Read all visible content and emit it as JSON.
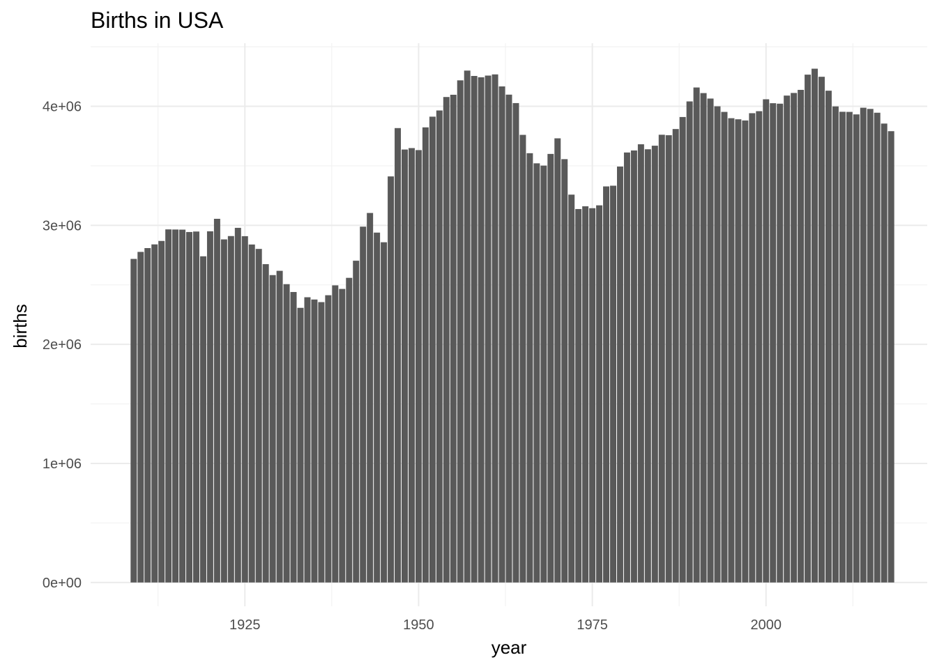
{
  "chart_data": {
    "type": "bar",
    "title": "Births in USA",
    "xlabel": "year",
    "ylabel": "births",
    "xlim": [
      1902.8,
      2023.2
    ],
    "ylim": [
      -200000,
      4530000
    ],
    "x_ticks": [
      1925,
      1950,
      1975,
      2000
    ],
    "x_tick_labels": [
      "1925",
      "1950",
      "1975",
      "2000"
    ],
    "y_ticks": [
      0,
      1000000,
      2000000,
      3000000,
      4000000
    ],
    "y_tick_labels": [
      "0e+00",
      "1e+06",
      "2e+06",
      "3e+06",
      "4e+06"
    ],
    "grid": true,
    "bar_color": "#595959",
    "x": [
      1909,
      1910,
      1911,
      1912,
      1913,
      1914,
      1915,
      1916,
      1917,
      1918,
      1919,
      1920,
      1921,
      1922,
      1923,
      1924,
      1925,
      1926,
      1927,
      1928,
      1929,
      1930,
      1931,
      1932,
      1933,
      1934,
      1935,
      1936,
      1937,
      1938,
      1939,
      1940,
      1941,
      1942,
      1943,
      1944,
      1945,
      1946,
      1947,
      1948,
      1949,
      1950,
      1951,
      1952,
      1953,
      1954,
      1955,
      1956,
      1957,
      1958,
      1959,
      1960,
      1961,
      1962,
      1963,
      1964,
      1965,
      1966,
      1967,
      1968,
      1969,
      1970,
      1971,
      1972,
      1973,
      1974,
      1975,
      1976,
      1977,
      1978,
      1979,
      1980,
      1981,
      1982,
      1983,
      1984,
      1985,
      1986,
      1987,
      1988,
      1989,
      1990,
      1991,
      1992,
      1993,
      1994,
      1995,
      1996,
      1997,
      1998,
      1999,
      2000,
      2001,
      2002,
      2003,
      2004,
      2005,
      2006,
      2007,
      2008,
      2009,
      2010,
      2011,
      2012,
      2013,
      2014,
      2015,
      2016,
      2017,
      2018
    ],
    "values": [
      2718000,
      2777000,
      2809000,
      2840000,
      2869000,
      2966000,
      2965000,
      2964000,
      2944000,
      2948000,
      2740000,
      2950000,
      3055000,
      2882000,
      2910000,
      2979000,
      2909000,
      2839000,
      2802000,
      2674000,
      2582000,
      2618000,
      2506000,
      2440000,
      2307000,
      2396000,
      2377000,
      2355000,
      2413000,
      2496000,
      2466000,
      2559000,
      2703000,
      2989000,
      3104000,
      2939000,
      2858000,
      3411000,
      3817000,
      3637000,
      3649000,
      3632000,
      3823000,
      3913000,
      3965000,
      4078000,
      4097000,
      4218000,
      4300000,
      4255000,
      4244000,
      4258000,
      4268000,
      4167000,
      4098000,
      4027000,
      3760000,
      3606000,
      3521000,
      3502000,
      3600000,
      3731000,
      3556000,
      3258000,
      3137000,
      3160000,
      3144000,
      3168000,
      3327000,
      3333000,
      3494000,
      3612000,
      3629000,
      3681000,
      3639000,
      3669000,
      3761000,
      3757000,
      3809000,
      3910000,
      4041000,
      4158000,
      4111000,
      4065000,
      4000000,
      3953000,
      3900000,
      3891000,
      3881000,
      3942000,
      3959000,
      4059000,
      4026000,
      4022000,
      4090000,
      4112000,
      4138000,
      4266000,
      4316000,
      4248000,
      4131000,
      3999000,
      3954000,
      3953000,
      3932000,
      3988000,
      3978000,
      3946000,
      3855000,
      3791000
    ]
  }
}
